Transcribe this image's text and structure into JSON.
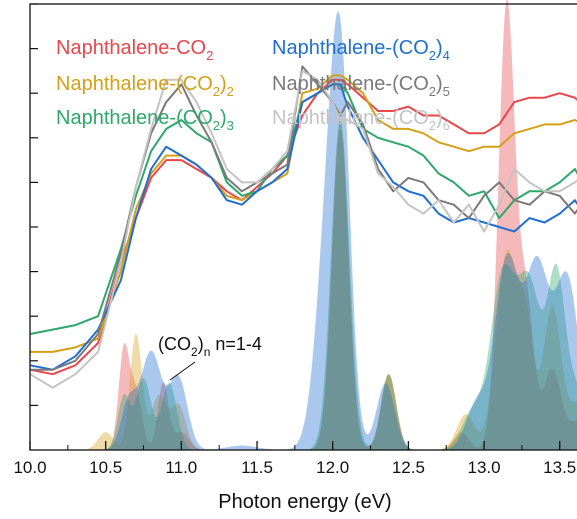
{
  "chart_data": {
    "type": "line",
    "title": "",
    "xlabel": "Photon energy (eV)",
    "ylabel": "",
    "xlim": [
      10.0,
      13.7
    ],
    "ylim": [
      0,
      1.0
    ],
    "x_ticks": [
      10.0,
      10.5,
      11.0,
      11.5,
      12.0,
      12.5,
      13.0,
      13.5
    ],
    "x_tick_labels": [
      "10.0",
      "10.5",
      "11.0",
      "11.5",
      "12.0",
      "12.5",
      "13.0",
      "13.5"
    ],
    "grid": false,
    "legend": {
      "placement": "top",
      "entries": [
        {
          "base": "Naphthalene-CO",
          "sub": "2",
          "suffix": "",
          "color": "#e8474b"
        },
        {
          "base": "Naphthalene-(CO",
          "sub": "2",
          "suffix": ")",
          "subscript_n": "2",
          "color": "#d4a017"
        },
        {
          "base": "Naphthalene-(CO",
          "sub": "2",
          "suffix": ")",
          "subscript_n": "3",
          "color": "#2ea86a"
        },
        {
          "base": "Naphthalene-(CO",
          "sub": "2",
          "suffix": ")",
          "subscript_n": "4",
          "color": "#1f6fd1"
        },
        {
          "base": "Naphthalene-(CO",
          "sub": "2",
          "suffix": ")",
          "subscript_n": "5",
          "color": "#7a7a7a"
        },
        {
          "base": "Naphthalene-(CO",
          "sub": "2",
          "suffix": ")",
          "subscript_n": "6",
          "color": "#c4c4c4"
        }
      ]
    },
    "annotation": {
      "text_a": "(CO",
      "sub_a": "2",
      "text_b": ")",
      "sub_b": "n",
      "text_c": " n=1-4"
    },
    "series": [
      {
        "color": "#e8474b",
        "x": [
          10.0,
          10.15,
          10.3,
          10.45,
          10.6,
          10.7,
          10.8,
          10.9,
          11.0,
          11.1,
          11.2,
          11.3,
          11.4,
          11.5,
          11.6,
          11.7,
          11.8,
          11.9,
          12.0,
          12.05,
          12.1,
          12.2,
          12.3,
          12.4,
          12.5,
          12.6,
          12.7,
          12.8,
          12.9,
          13.0,
          13.1,
          13.2,
          13.3,
          13.4,
          13.5,
          13.6,
          13.7
        ],
        "y": [
          0.18,
          0.17,
          0.19,
          0.24,
          0.42,
          0.52,
          0.61,
          0.65,
          0.65,
          0.63,
          0.61,
          0.58,
          0.56,
          0.59,
          0.62,
          0.66,
          0.75,
          0.8,
          0.83,
          0.83,
          0.82,
          0.79,
          0.76,
          0.76,
          0.77,
          0.75,
          0.75,
          0.73,
          0.71,
          0.71,
          0.73,
          0.78,
          0.79,
          0.79,
          0.8,
          0.79,
          0.76
        ]
      },
      {
        "color": "#d4a017",
        "x": [
          10.0,
          10.15,
          10.3,
          10.45,
          10.6,
          10.7,
          10.8,
          10.9,
          11.0,
          11.1,
          11.2,
          11.3,
          11.4,
          11.5,
          11.6,
          11.7,
          11.8,
          11.9,
          12.0,
          12.05,
          12.1,
          12.2,
          12.3,
          12.4,
          12.5,
          12.6,
          12.7,
          12.8,
          12.9,
          13.0,
          13.1,
          13.2,
          13.3,
          13.4,
          13.5,
          13.6,
          13.7
        ],
        "y": [
          0.22,
          0.22,
          0.23,
          0.25,
          0.4,
          0.54,
          0.62,
          0.66,
          0.66,
          0.64,
          0.61,
          0.57,
          0.56,
          0.58,
          0.6,
          0.62,
          0.8,
          0.81,
          0.84,
          0.84,
          0.83,
          0.8,
          0.74,
          0.72,
          0.72,
          0.71,
          0.69,
          0.68,
          0.67,
          0.68,
          0.68,
          0.71,
          0.72,
          0.73,
          0.73,
          0.74,
          0.72
        ]
      },
      {
        "color": "#2ea86a",
        "x": [
          10.0,
          10.15,
          10.3,
          10.45,
          10.6,
          10.7,
          10.8,
          10.9,
          11.0,
          11.1,
          11.2,
          11.3,
          11.4,
          11.5,
          11.6,
          11.7,
          11.8,
          11.9,
          12.0,
          12.05,
          12.1,
          12.2,
          12.3,
          12.4,
          12.5,
          12.6,
          12.7,
          12.8,
          12.9,
          13.0,
          13.1,
          13.2,
          13.3,
          13.4,
          13.5,
          13.6,
          13.7
        ],
        "y": [
          0.26,
          0.27,
          0.28,
          0.3,
          0.45,
          0.57,
          0.67,
          0.72,
          0.74,
          0.71,
          0.69,
          0.6,
          0.57,
          0.58,
          0.63,
          0.66,
          0.78,
          0.8,
          0.82,
          0.82,
          0.8,
          0.72,
          0.7,
          0.69,
          0.68,
          0.66,
          0.62,
          0.6,
          0.57,
          0.58,
          0.52,
          0.56,
          0.58,
          0.58,
          0.6,
          0.63,
          0.57
        ]
      },
      {
        "color": "#1f6fd1",
        "x": [
          10.0,
          10.15,
          10.3,
          10.45,
          10.6,
          10.7,
          10.8,
          10.9,
          11.0,
          11.1,
          11.2,
          11.3,
          11.4,
          11.5,
          11.6,
          11.7,
          11.8,
          11.9,
          12.0,
          12.05,
          12.1,
          12.2,
          12.3,
          12.4,
          12.5,
          12.6,
          12.7,
          12.8,
          12.9,
          13.0,
          13.1,
          13.2,
          13.3,
          13.4,
          13.5,
          13.6,
          13.7
        ],
        "y": [
          0.19,
          0.18,
          0.21,
          0.27,
          0.38,
          0.52,
          0.63,
          0.68,
          0.66,
          0.64,
          0.61,
          0.56,
          0.55,
          0.58,
          0.6,
          0.63,
          0.78,
          0.8,
          0.82,
          0.82,
          0.77,
          0.7,
          0.65,
          0.6,
          0.58,
          0.57,
          0.53,
          0.51,
          0.52,
          0.51,
          0.5,
          0.49,
          0.52,
          0.51,
          0.53,
          0.56,
          0.51
        ]
      },
      {
        "color": "#7a7a7a",
        "x": [
          10.0,
          10.15,
          10.3,
          10.45,
          10.6,
          10.7,
          10.8,
          10.9,
          11.0,
          11.1,
          11.2,
          11.3,
          11.4,
          11.5,
          11.6,
          11.7,
          11.8,
          11.9,
          12.0,
          12.05,
          12.1,
          12.2,
          12.3,
          12.4,
          12.5,
          12.6,
          12.7,
          12.8,
          12.9,
          13.0,
          13.1,
          13.2,
          13.3,
          13.4,
          13.5,
          13.6,
          13.7
        ],
        "y": [
          0.18,
          0.18,
          0.2,
          0.26,
          0.44,
          0.59,
          0.71,
          0.78,
          0.82,
          0.75,
          0.69,
          0.61,
          0.58,
          0.6,
          0.62,
          0.64,
          0.86,
          0.82,
          0.78,
          0.75,
          0.78,
          0.73,
          0.63,
          0.58,
          0.61,
          0.6,
          0.56,
          0.55,
          0.52,
          0.57,
          0.6,
          0.56,
          0.55,
          0.58,
          0.57,
          0.53,
          0.58
        ]
      },
      {
        "color": "#c4c4c4",
        "x": [
          10.0,
          10.15,
          10.3,
          10.45,
          10.6,
          10.7,
          10.8,
          10.9,
          11.0,
          11.1,
          11.2,
          11.3,
          11.4,
          11.5,
          11.6,
          11.7,
          11.8,
          11.9,
          12.0,
          12.05,
          12.1,
          12.2,
          12.3,
          12.4,
          12.5,
          12.6,
          12.7,
          12.8,
          12.9,
          13.0,
          13.1,
          13.2,
          13.3,
          13.4,
          13.5,
          13.6,
          13.7
        ],
        "y": [
          0.17,
          0.14,
          0.17,
          0.22,
          0.42,
          0.59,
          0.72,
          0.83,
          0.83,
          0.78,
          0.71,
          0.63,
          0.6,
          0.6,
          0.63,
          0.67,
          0.85,
          0.83,
          0.78,
          0.74,
          0.74,
          0.72,
          0.62,
          0.59,
          0.55,
          0.53,
          0.56,
          0.51,
          0.55,
          0.49,
          0.55,
          0.63,
          0.6,
          0.58,
          0.58,
          0.6,
          0.63
        ]
      }
    ],
    "areas": [
      {
        "color": "#e8474b",
        "peaks": [
          [
            10.62,
            0.22,
            0.035
          ],
          [
            10.7,
            0.13,
            0.04
          ],
          [
            10.88,
            0.15,
            0.035
          ],
          [
            11.0,
            0.04,
            0.05
          ],
          [
            12.05,
            0.72,
            0.055
          ],
          [
            12.37,
            0.17,
            0.05
          ],
          [
            12.85,
            0.04,
            0.05
          ],
          [
            13.15,
            1.0,
            0.055
          ],
          [
            13.28,
            0.32,
            0.05
          ],
          [
            13.45,
            0.18,
            0.06
          ],
          [
            13.62,
            0.06,
            0.06
          ]
        ]
      },
      {
        "color": "#d4a017",
        "peaks": [
          [
            10.5,
            0.04,
            0.05
          ],
          [
            10.7,
            0.26,
            0.04
          ],
          [
            10.85,
            0.12,
            0.05
          ],
          [
            10.98,
            0.1,
            0.05
          ],
          [
            12.05,
            0.74,
            0.055
          ],
          [
            12.37,
            0.17,
            0.05
          ],
          [
            12.88,
            0.08,
            0.06
          ],
          [
            13.15,
            0.44,
            0.07
          ],
          [
            13.28,
            0.25,
            0.05
          ],
          [
            13.45,
            0.32,
            0.06
          ],
          [
            13.62,
            0.1,
            0.06
          ]
        ]
      },
      {
        "color": "#2ea86a",
        "peaks": [
          [
            10.62,
            0.12,
            0.04
          ],
          [
            10.75,
            0.16,
            0.05
          ],
          [
            10.92,
            0.15,
            0.05
          ],
          [
            12.05,
            0.74,
            0.06
          ],
          [
            12.37,
            0.17,
            0.05
          ],
          [
            12.92,
            0.08,
            0.07
          ],
          [
            13.12,
            0.38,
            0.08
          ],
          [
            13.3,
            0.36,
            0.08
          ],
          [
            13.48,
            0.38,
            0.06
          ],
          [
            13.62,
            0.12,
            0.06
          ]
        ]
      },
      {
        "color": "#1f6fd1",
        "peaks": [
          [
            10.65,
            0.1,
            0.05
          ],
          [
            10.8,
            0.22,
            0.07
          ],
          [
            10.98,
            0.16,
            0.06
          ],
          [
            11.4,
            0.01,
            0.1
          ],
          [
            11.98,
            0.55,
            0.08
          ],
          [
            12.06,
            0.6,
            0.06
          ],
          [
            12.35,
            0.15,
            0.06
          ],
          [
            12.95,
            0.1,
            0.07
          ],
          [
            13.15,
            0.42,
            0.08
          ],
          [
            13.35,
            0.4,
            0.08
          ],
          [
            13.55,
            0.38,
            0.08
          ]
        ]
      }
    ]
  }
}
